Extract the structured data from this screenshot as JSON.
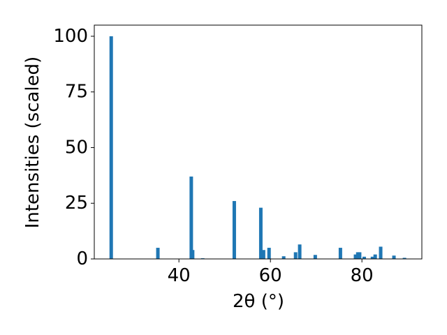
{
  "chart_data": {
    "type": "bar",
    "x_label": "2θ (°)",
    "y_label": "Intensities (scaled)",
    "x": [
      25.2,
      35.4,
      42.7,
      43.0,
      45.2,
      52.1,
      57.9,
      58.5,
      59.7,
      62.9,
      65.5,
      66.4,
      69.8,
      75.3,
      78.6,
      79.1,
      79.5,
      80.5,
      82.3,
      82.9,
      84.1,
      87.0,
      89.3
    ],
    "values": [
      100,
      5,
      37,
      4,
      0.3,
      26,
      23,
      4,
      5,
      1.2,
      3,
      6.5,
      1.8,
      5,
      2,
      3,
      3,
      1,
      1,
      2,
      5.5,
      1.5,
      0.5
    ],
    "color": "#1f77b4",
    "xlim": [
      21.5,
      93.1
    ],
    "ylim": [
      0,
      105
    ],
    "xticks": [
      40,
      60,
      80
    ],
    "yticks": [
      0,
      25,
      50,
      75,
      100
    ],
    "grid": false
  }
}
